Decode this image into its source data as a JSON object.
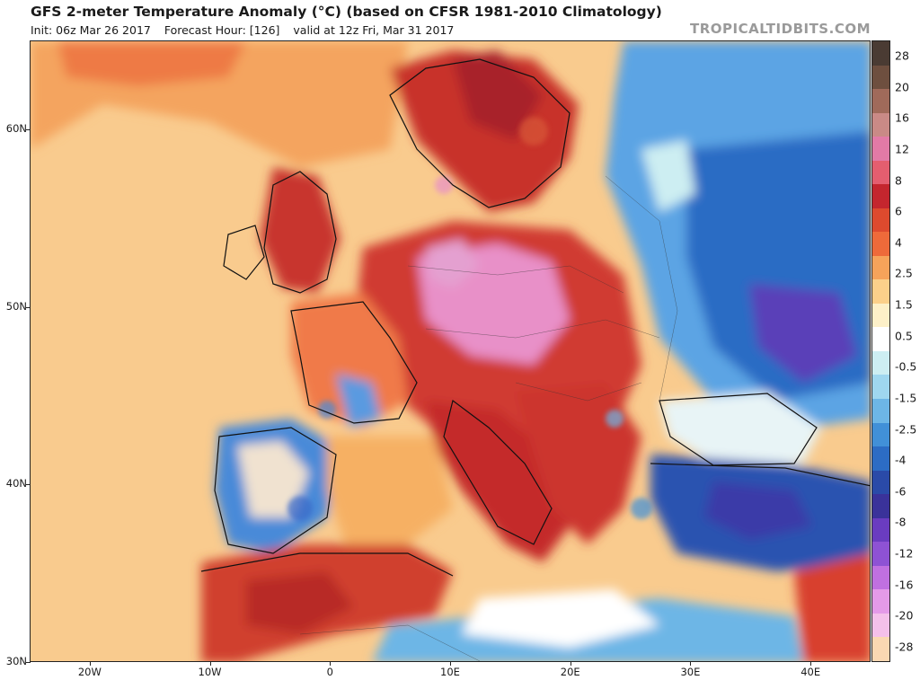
{
  "header": {
    "title": "GFS 2-meter Temperature Anomaly (°C) (based on CFSR 1981-2010 Climatology)",
    "init": "Init: 06z Mar 26 2017",
    "forecast_hour": "Forecast Hour: [126]",
    "valid": "valid at 12z Fri, Mar 31 2017",
    "brand": "TROPICALTIDBITS.COM"
  },
  "map": {
    "lat_labels": [
      "60N",
      "50N",
      "40N",
      "30N"
    ],
    "lon_labels": [
      "20W",
      "10W",
      "0",
      "10E",
      "20E",
      "30E",
      "40E"
    ],
    "lat_values": [
      60,
      50,
      40,
      30
    ],
    "lon_values": [
      -20,
      -10,
      0,
      10,
      20,
      30,
      40
    ],
    "extent": {
      "lon_min": -25,
      "lon_max": 45,
      "lat_min": 30,
      "lat_max": 65
    }
  },
  "colorbar": {
    "labels": [
      "28",
      "20",
      "16",
      "12",
      "8",
      "6",
      "4",
      "2.5",
      "1.5",
      "0.5",
      "-0.5",
      "-1.5",
      "-2.5",
      "-4",
      "-6",
      "-8",
      "-12",
      "-16",
      "-20",
      "-28"
    ],
    "colors": [
      "#4a3b33",
      "#6e4f3f",
      "#a06a5a",
      "#c98a86",
      "#e27aa6",
      "#e45e6f",
      "#c4262e",
      "#dd4a2e",
      "#ee6a3a",
      "#f6a35a",
      "#fbd08a",
      "#fdf0c8",
      "#ffffff",
      "#cdeef2",
      "#9fd7ef",
      "#6db6e6",
      "#4190d8",
      "#2c6cc4",
      "#2a4aa8",
      "#3a329a",
      "#6a3cc0",
      "#8e52d4",
      "#c070e0",
      "#e49ae8",
      "#f4c0ea",
      "#fad8b2"
    ]
  },
  "colors": {
    "ocean_warm": "#f8c88a",
    "warm_land": "#e8643a",
    "hot": "#c8302c",
    "very_hot": "#e890c8",
    "cold": "#3c7cd0",
    "very_cold": "#5a40b8"
  }
}
